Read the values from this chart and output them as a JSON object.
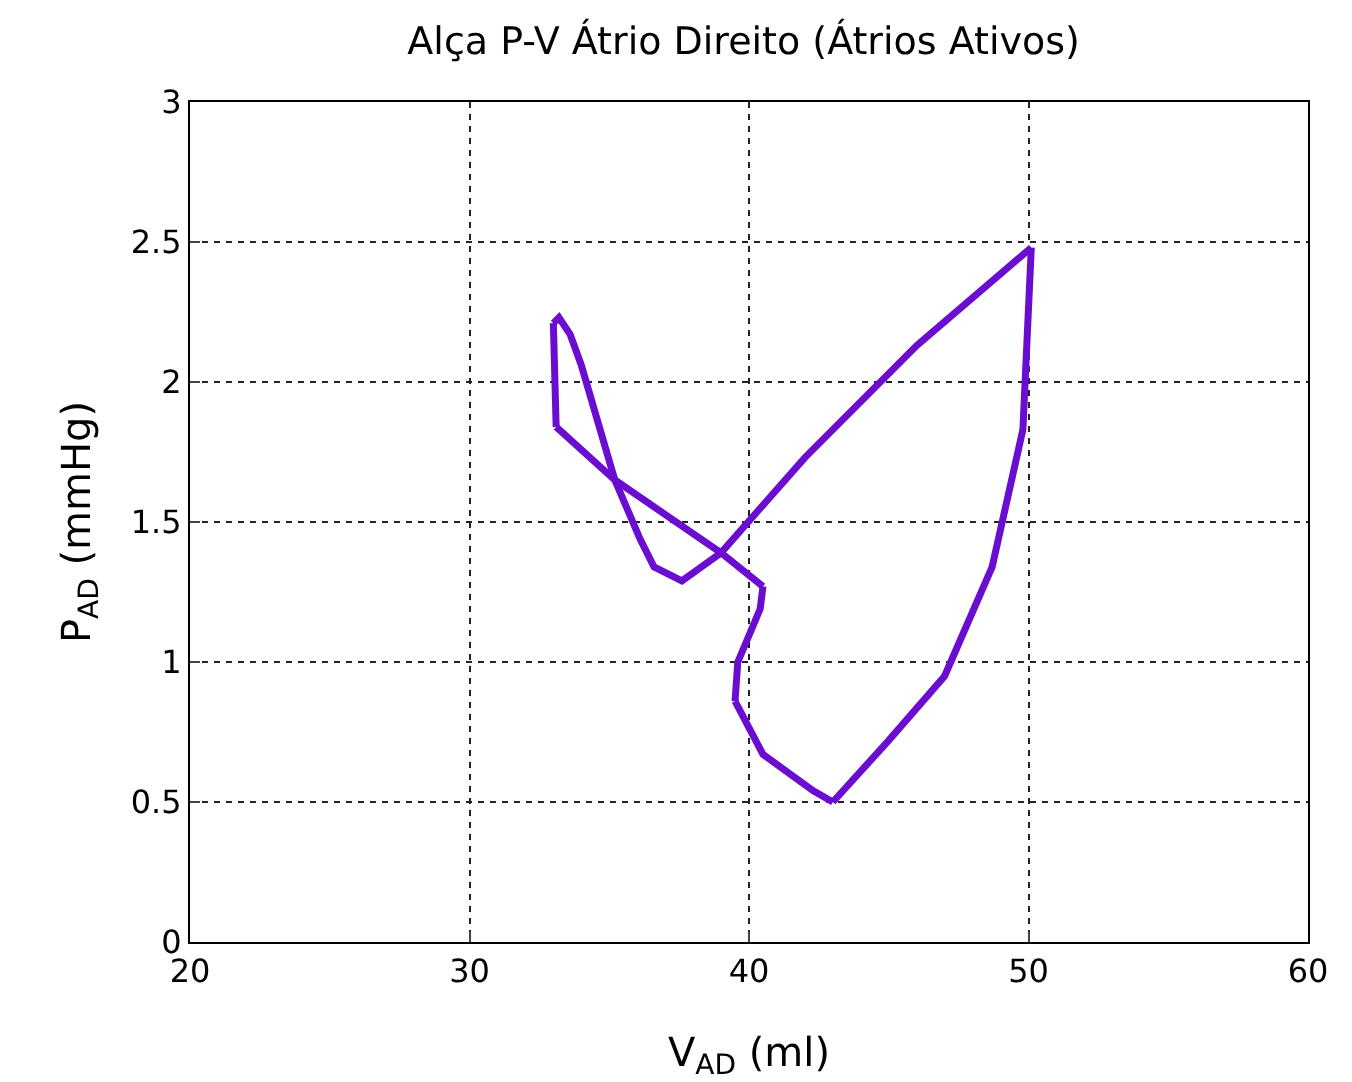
{
  "chart_data": {
    "type": "line",
    "title": "Alça P-V Átrio Direito (Átrios Ativos)",
    "xlabel": "V$_{AD}$ (ml)",
    "ylabel": "P$_{AD}$ (mmHg)",
    "series": [
      {
        "color": "#6a0dd0",
        "x": [
          43.0,
          45.0,
          47.0,
          48.7,
          49.8,
          50.1
        ],
        "values": [
          0.5,
          0.72,
          0.95,
          1.34,
          1.83,
          2.48
        ]
      },
      {
        "color": "#6a0dd0",
        "x": [
          50.1,
          46.0,
          42.0,
          39.0,
          37.6,
          36.6,
          36.1,
          35.2,
          34.0,
          33.6,
          33.2,
          33.0
        ],
        "values": [
          2.48,
          2.13,
          1.73,
          1.39,
          1.29,
          1.34,
          1.44,
          1.65,
          2.06,
          2.17,
          2.23,
          2.21
        ]
      },
      {
        "color": "#6a0dd0",
        "x": [
          33.0,
          33.1
        ],
        "values": [
          2.21,
          1.84
        ]
      },
      {
        "color": "#6a0dd0",
        "x": [
          33.1,
          35.2,
          39.0,
          40.5
        ],
        "values": [
          1.84,
          1.65,
          1.39,
          1.27
        ]
      },
      {
        "color": "#6a0dd0",
        "x": [
          40.5,
          40.4,
          39.6,
          39.5
        ],
        "values": [
          1.27,
          1.19,
          1.0,
          0.86
        ]
      },
      {
        "color": "#6a0dd0",
        "x": [
          39.5,
          40.5,
          42.3,
          43.0
        ],
        "values": [
          0.86,
          0.67,
          0.54,
          0.5
        ]
      }
    ],
    "xlim": [
      20,
      60
    ],
    "xticks": [
      20,
      30,
      40,
      50,
      60
    ],
    "ylim": [
      0,
      3
    ],
    "yticks": [
      0,
      0.5,
      1,
      1.5,
      2,
      2.5,
      3
    ],
    "grid": true,
    "legend": false,
    "marker": "none",
    "line_style": "solid"
  }
}
